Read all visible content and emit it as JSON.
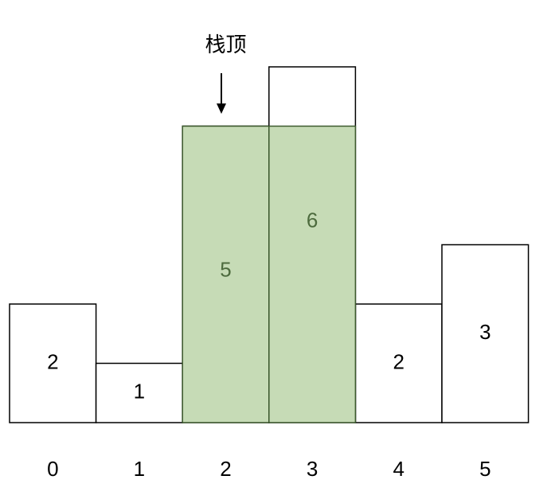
{
  "chart_data": {
    "type": "bar",
    "categories": [
      "0",
      "1",
      "2",
      "3",
      "4",
      "5"
    ],
    "values": [
      2,
      1,
      5,
      6,
      2,
      3
    ],
    "value_labels": [
      "2",
      "1",
      "5",
      "6",
      "2",
      "3"
    ],
    "highlighted_indices": [
      2,
      3
    ],
    "colors": {
      "bar_fill": "#ffffff",
      "bar_stroke": "#000000",
      "highlight_fill": "#c6dbb6",
      "highlight_stroke": "#3d5a2e",
      "highlight_text": "#4d6b3e",
      "text": "#000000"
    }
  },
  "pointer": {
    "label": "栈顶",
    "target_index": 2
  }
}
